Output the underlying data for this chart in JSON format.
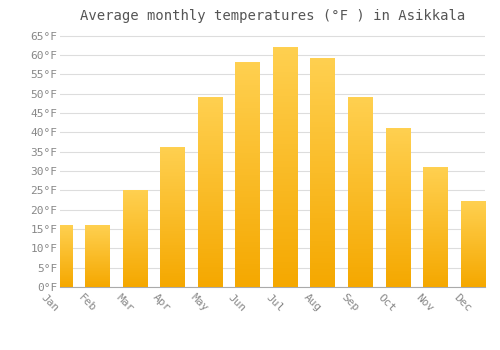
{
  "title": "Average monthly temperatures (°F ) in Asikkala",
  "months": [
    "Jan",
    "Feb",
    "Mar",
    "Apr",
    "May",
    "Jun",
    "Jul",
    "Aug",
    "Sep",
    "Oct",
    "Nov",
    "Dec"
  ],
  "values": [
    16,
    16,
    25,
    36,
    49,
    58,
    62,
    59,
    49,
    41,
    31,
    22
  ],
  "bar_color_bottom": "#F5A800",
  "bar_color_top": "#FFD050",
  "background_color": "#FFFFFF",
  "grid_color": "#DDDDDD",
  "text_color": "#888888",
  "title_color": "#555555",
  "ylim": [
    0,
    67
  ],
  "yticks": [
    0,
    5,
    10,
    15,
    20,
    25,
    30,
    35,
    40,
    45,
    50,
    55,
    60,
    65
  ],
  "title_fontsize": 10,
  "tick_fontsize": 8
}
